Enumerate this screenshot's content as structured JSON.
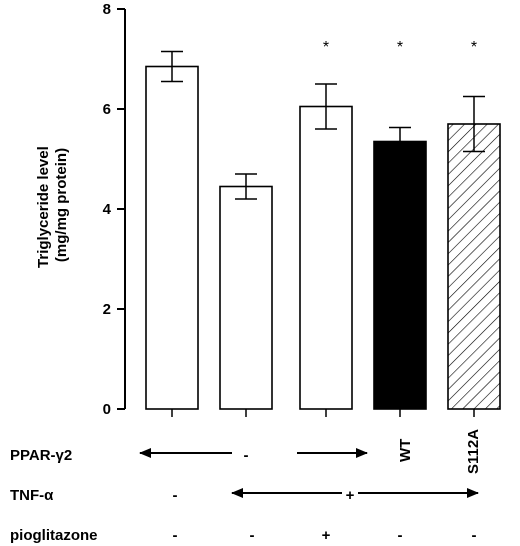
{
  "chart_data": {
    "type": "bar",
    "title": "",
    "xlabel": "",
    "ylabel": "Triglyceride level",
    "ylabel_line2": "(mg/mg protein)",
    "ylim": [
      0,
      8
    ],
    "yticks": [
      "0",
      "2",
      "4",
      "6",
      "8"
    ],
    "grid": false,
    "series": [
      {
        "values": [
          6.85,
          4.45,
          6.05,
          5.35,
          5.7
        ],
        "errors": [
          0.3,
          0.25,
          0.45,
          0.28,
          0.55
        ],
        "fills": [
          "white",
          "white",
          "white",
          "black",
          "hatched"
        ],
        "significant": [
          false,
          false,
          true,
          true,
          true
        ]
      }
    ],
    "significance_marker": "*",
    "conditions": [
      {
        "name": "PPAR-γ2",
        "cells": [
          "",
          "-",
          "",
          "WT",
          "S112A"
        ]
      },
      {
        "name": "TNF-α",
        "cells": [
          "-",
          "",
          "+",
          "",
          ""
        ]
      },
      {
        "name": "pioglitazone",
        "cells": [
          "-",
          "-",
          "+",
          "-",
          "-"
        ]
      }
    ]
  }
}
